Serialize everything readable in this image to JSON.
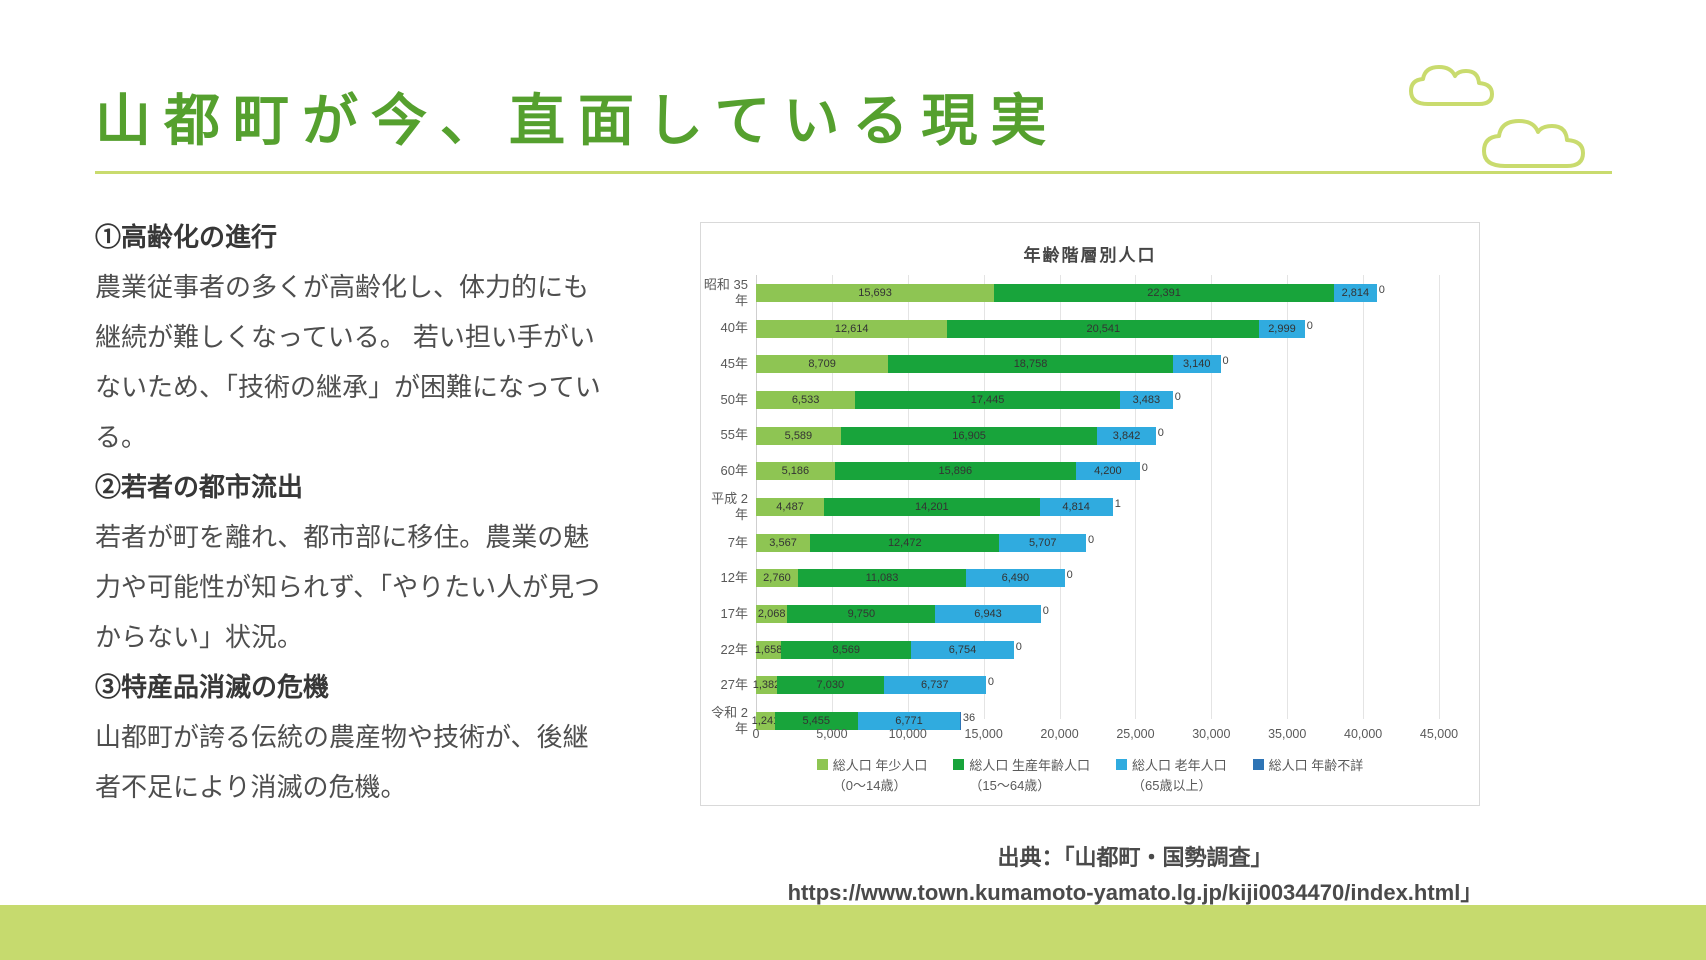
{
  "page": {
    "title": "山都町が今、直面している現実",
    "source_line1": "出典：「山都町・国勢調査」",
    "source_line2": "https://www.town.kumamoto-yamato.lg.jp/kiji0034470/index.html」"
  },
  "sections": [
    {
      "heading": "①高齢化の進行",
      "body": "農業従事者の多くが高齢化し、体力的にも\n継続が難しくなっている。 若い担い手がい\nないため、「技術の継承」が困難になってい\nる。"
    },
    {
      "heading": "②若者の都市流出",
      "body": "若者が町を離れ、都市部に移住。農業の魅\n力や可能性が知られず、「やりたい人が見つ\nからない」状況。"
    },
    {
      "heading": "③特産品消滅の危機",
      "body": "山都町が誇る伝統の農産物や技術が、後継\n者不足により消滅の危機。"
    }
  ],
  "chart_data": {
    "type": "bar",
    "orientation": "horizontal",
    "stacked": true,
    "title": "年齢階層別人口",
    "categories": [
      "昭和 35\n年",
      "40年",
      "45年",
      "50年",
      "55年",
      "60年",
      "平成 2\n年",
      "7年",
      "12年",
      "17年",
      "22年",
      "27年",
      "令和 2\n年"
    ],
    "series": [
      {
        "name": "総人口 年少人口\n（0～14歳）",
        "color": "#8ec553",
        "values": [
          15693,
          12614,
          8709,
          6533,
          5589,
          5186,
          4487,
          3567,
          2760,
          2068,
          1658,
          1382,
          1241
        ]
      },
      {
        "name": "総人口 生産年齢人口\n（15～64歳）",
        "color": "#18a43b",
        "values": [
          22391,
          20541,
          18758,
          17445,
          16905,
          15896,
          14201,
          12472,
          11083,
          9750,
          8569,
          7030,
          5455
        ]
      },
      {
        "name": "総人口 老年人口\n（65歳以上）",
        "color": "#30abdf",
        "values": [
          2814,
          2999,
          3140,
          3483,
          3842,
          4200,
          4814,
          5707,
          6490,
          6943,
          6754,
          6737,
          6771
        ]
      },
      {
        "name": "総人口 年齢不詳",
        "color": "#2e74b5",
        "values": [
          0,
          0,
          0,
          0,
          0,
          0,
          1,
          0,
          0,
          0,
          0,
          0,
          36
        ]
      }
    ],
    "x_ticks": [
      "0",
      "5,000",
      "10,000",
      "15,000",
      "20,000",
      "25,000",
      "30,000",
      "35,000",
      "40,000",
      "45,000"
    ],
    "xlim": [
      0,
      45000
    ],
    "grid": true,
    "legend_position": "bottom"
  },
  "colors": {
    "title_green": "#55a02e",
    "accent_band": "#c9db6e",
    "body_text": "#4e4e4e"
  }
}
